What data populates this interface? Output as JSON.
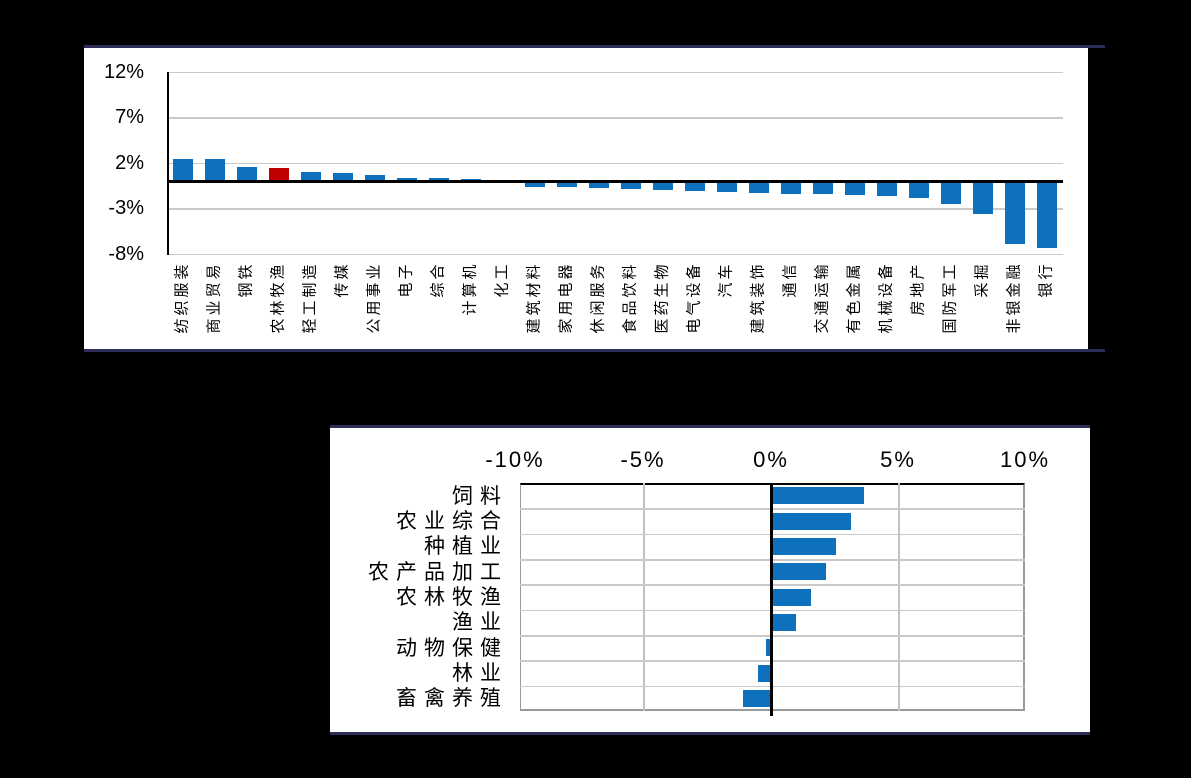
{
  "page_background": "#000000",
  "panel_border_color": "#2e2c58",
  "chart_data": [
    {
      "type": "bar",
      "orientation": "vertical",
      "title": "",
      "xlabel": "",
      "ylabel": "",
      "categories": [
        "纺织服装",
        "商业贸易",
        "钢铁",
        "农林牧渔",
        "轻工制造",
        "传媒",
        "公用事业",
        "电子",
        "综合",
        "计算机",
        "化工",
        "建筑材料",
        "家用电器",
        "休闲服务",
        "食品饮料",
        "医药生物",
        "电气设备",
        "汽车",
        "建筑装饰",
        "通信",
        "交通运输",
        "有色金属",
        "机械设备",
        "房地产",
        "国防军工",
        "采掘",
        "非银金融",
        "银行"
      ],
      "values": [
        2.5,
        2.5,
        1.6,
        1.5,
        1.0,
        0.9,
        0.7,
        0.4,
        0.35,
        0.3,
        0.1,
        -0.4,
        -0.45,
        -0.55,
        -0.7,
        -0.8,
        -0.9,
        -1.0,
        -1.1,
        -1.2,
        -1.2,
        -1.35,
        -1.45,
        -1.7,
        -2.3,
        -3.4,
        -6.7,
        -7.1
      ],
      "highlight_category": "农林牧渔",
      "bar_color": "#0e71bd",
      "highlight_color": "#c00000",
      "ytick_labels": [
        "12%",
        "7%",
        "2%",
        "-3%",
        "-8%"
      ],
      "ytick_values": [
        12,
        7,
        2,
        -3,
        -8
      ],
      "ylim": [
        -8,
        12
      ],
      "grid": true,
      "legend": false
    },
    {
      "type": "bar",
      "orientation": "horizontal",
      "title": "",
      "xlabel": "",
      "ylabel": "",
      "categories": [
        "饲料",
        "农业综合",
        "种植业",
        "农产品加工",
        "农林牧渔",
        "渔业",
        "动物保健",
        "林业",
        "畜禽养殖"
      ],
      "values": [
        3.6,
        3.1,
        2.5,
        2.1,
        1.5,
        0.9,
        -0.2,
        -0.5,
        -1.1
      ],
      "bar_color": "#0e71bd",
      "xtick_labels": [
        "-10%",
        "-5%",
        "0%",
        "5%",
        "10%"
      ],
      "xtick_values": [
        -10,
        -5,
        0,
        5,
        10
      ],
      "xlim": [
        -10,
        10
      ],
      "grid": true,
      "legend": false,
      "axis_position": "top"
    }
  ]
}
